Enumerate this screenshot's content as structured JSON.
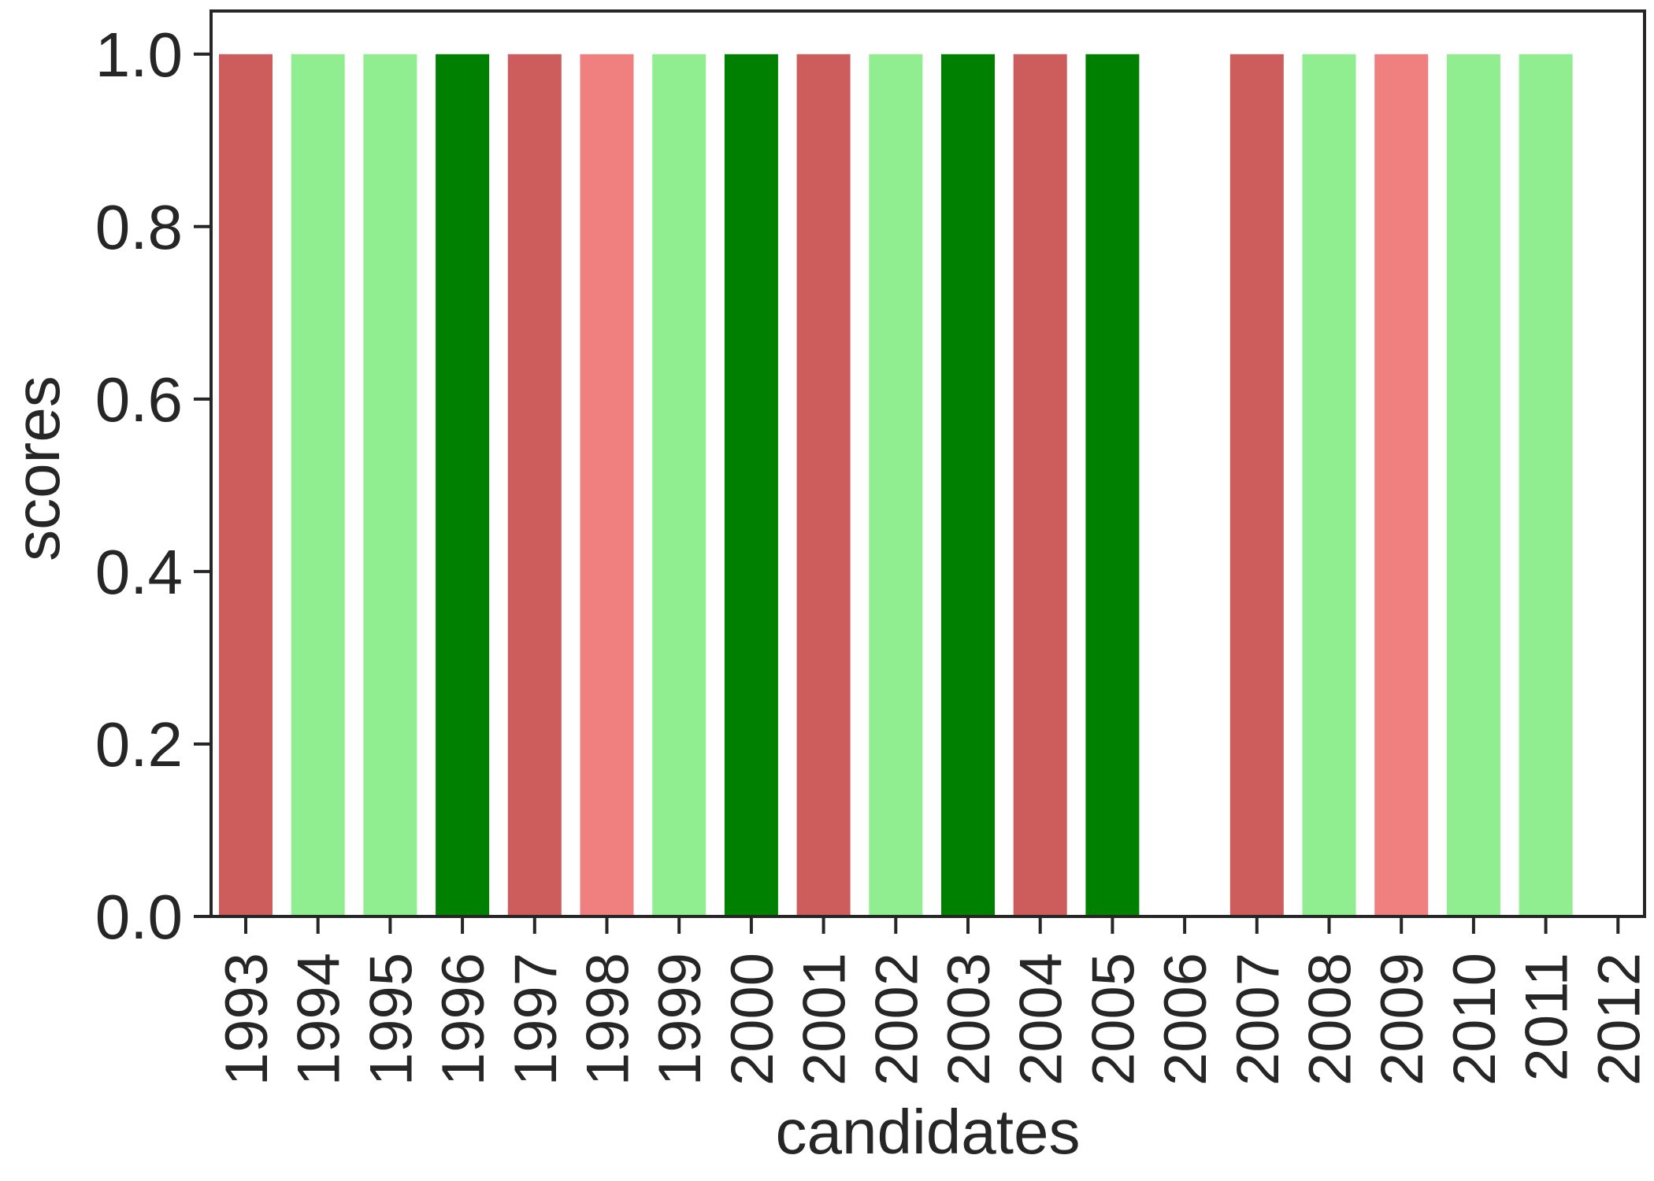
{
  "chart_data": {
    "type": "bar",
    "xlabel": "candidates",
    "ylabel": "scores",
    "categories": [
      "1993",
      "1994",
      "1995",
      "1996",
      "1997",
      "1998",
      "1999",
      "2000",
      "2001",
      "2002",
      "2003",
      "2004",
      "2005",
      "2006",
      "2007",
      "2008",
      "2009",
      "2010",
      "2011",
      "2012"
    ],
    "values": [
      1,
      1,
      1,
      1,
      1,
      1,
      1,
      1,
      1,
      1,
      1,
      1,
      1,
      0,
      1,
      1,
      1,
      1,
      1,
      0
    ],
    "bar_colors": [
      "#cd5c5c",
      "#90ee90",
      "#90ee90",
      "#008000",
      "#cd5c5c",
      "#f08080",
      "#90ee90",
      "#008000",
      "#cd5c5c",
      "#90ee90",
      "#008000",
      "#cd5c5c",
      "#008000",
      "#ffffff",
      "#cd5c5c",
      "#90ee90",
      "#f08080",
      "#90ee90",
      "#90ee90",
      "#ffffff"
    ],
    "ylim": [
      0,
      1.05
    ],
    "yticks": [
      0.0,
      0.2,
      0.4,
      0.6,
      0.8,
      1.0
    ],
    "ytick_labels": [
      "0.0",
      "0.2",
      "0.4",
      "0.6",
      "0.8",
      "1.0"
    ],
    "grid": false,
    "axis_color": "#262626"
  }
}
